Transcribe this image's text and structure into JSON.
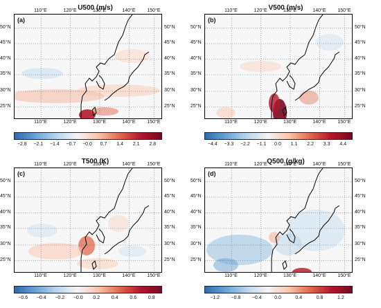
{
  "panels": [
    {
      "id": "a",
      "title": "U500 (m/s)",
      "label": "(a)",
      "colorbar_ticks": [
        "−2.8",
        "−2.1",
        "−1.4",
        "−0.7",
        "−0.0",
        "0.7",
        "1.4",
        "2.1",
        "2.8"
      ],
      "colorbar": [
        "#2b6cb0",
        "#6aa3d6",
        "#b9d6ee",
        "#f4f4f4",
        "#f9c4aa",
        "#e06a4e",
        "#b2182b",
        "#7a0820"
      ]
    },
    {
      "id": "b",
      "title": "V500 (m/s)",
      "label": "(b)",
      "colorbar_ticks": [
        "−4.4",
        "−3.3",
        "−2.2",
        "−1.1",
        "0.0",
        "1.1",
        "2.2",
        "3.3",
        "4.4"
      ],
      "colorbar": [
        "#2b6cb0",
        "#6aa3d6",
        "#b9d6ee",
        "#f4f4f4",
        "#f9c4aa",
        "#e06a4e",
        "#b2182b",
        "#7a0820"
      ]
    },
    {
      "id": "c",
      "title": "T500 (K)",
      "label": "(c)",
      "colorbar_ticks": [
        "−0.6",
        "−0.4",
        "−0.2",
        "−0.0",
        "0.2",
        "0.4",
        "0.6",
        "0.8"
      ],
      "colorbar": [
        "#2b6cb0",
        "#6aa3d6",
        "#b9d6ee",
        "#f4f4f4",
        "#f9c4aa",
        "#e06a4e",
        "#b2182b",
        "#7a0820"
      ]
    },
    {
      "id": "d",
      "title": "Q500 (g/kg)",
      "label": "(d)",
      "colorbar_ticks": [
        "−1.2",
        "−0.8",
        "−0.4",
        "0.0",
        "0.4",
        "0.8",
        "1.2"
      ],
      "colorbar": [
        "#2b6cb0",
        "#6aa3d6",
        "#b9d6ee",
        "#f4f4f4",
        "#f9c4aa",
        "#e06a4e",
        "#b2182b",
        "#7a0820"
      ]
    }
  ],
  "lon_ticks": [
    "110°E",
    "120°E",
    "130°E",
    "140°E",
    "150°E"
  ],
  "lat_ticks": [
    "50°N",
    "45°N",
    "40°N",
    "35°N",
    "30°N",
    "25°N"
  ]
}
